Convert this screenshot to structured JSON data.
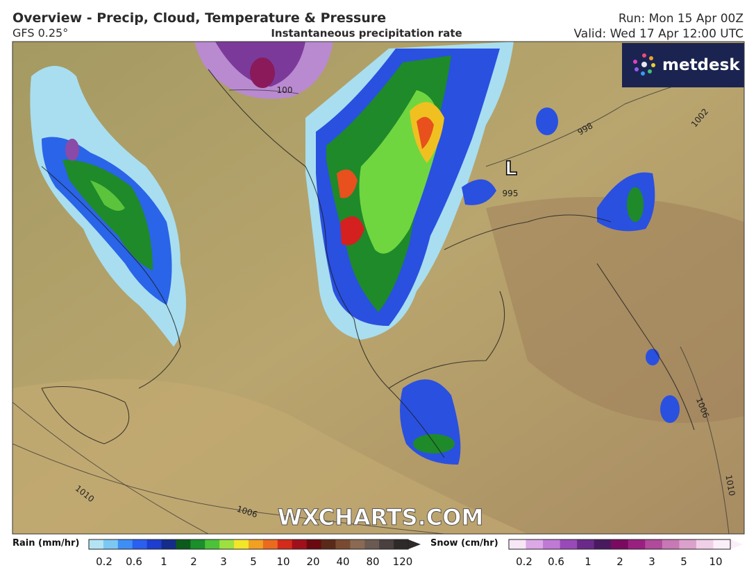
{
  "header": {
    "title": "Overview - Precip, Cloud, Temperature & Pressure",
    "model": "GFS 0.25°",
    "subtitle": "Instantaneous precipitation rate",
    "run": "Run: Mon 15 Apr 00Z",
    "valid": "Valid: Wed 17 Apr 12:00 UTC"
  },
  "map": {
    "logo": "metdesk",
    "watermark": "WXCHARTS.COM",
    "low_marker": "L",
    "isobar_labels": [
      "995",
      "998",
      "1002",
      "1006",
      "1010",
      "1006",
      "1010",
      "100"
    ]
  },
  "legend": {
    "rain": {
      "title": "Rain (mm/hr)",
      "labels": [
        "0.2",
        "0.6",
        "1",
        "2",
        "3",
        "5",
        "10",
        "20",
        "40",
        "80",
        "120"
      ]
    },
    "snow": {
      "title": "Snow (cm/hr)",
      "labels": [
        "0.2",
        "0.6",
        "1",
        "2",
        "3",
        "5",
        "10"
      ]
    }
  }
}
